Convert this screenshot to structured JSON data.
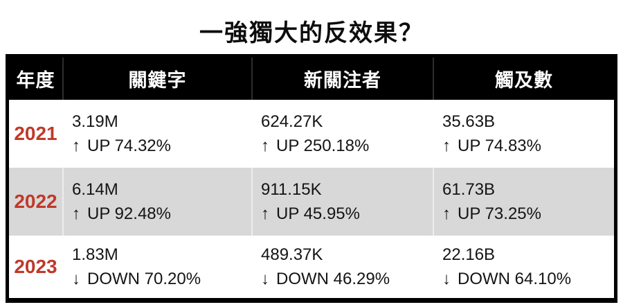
{
  "title": "一強獨大的反效果？",
  "colors": {
    "header_bg": "#000000",
    "header_text": "#ffffff",
    "year_accent": "#c0392b",
    "row_alt_bg": "#d8d8d8",
    "row_bg": "#ffffff",
    "text": "#141414",
    "border": "#000000"
  },
  "table": {
    "headers": [
      "年度",
      "關鍵字",
      "新關注者",
      "觸及數"
    ],
    "rows": [
      {
        "year": "2021",
        "cells": [
          {
            "value": "3.19M",
            "arrow": "↑",
            "change": "UP 74.32%",
            "direction": "up"
          },
          {
            "value": "624.27K",
            "arrow": "↑",
            "change": "UP 250.18%",
            "direction": "up"
          },
          {
            "value": "35.63B",
            "arrow": "↑",
            "change": "UP 74.83%",
            "direction": "up"
          }
        ]
      },
      {
        "year": "2022",
        "cells": [
          {
            "value": "6.14M",
            "arrow": "↑",
            "change": "UP 92.48%",
            "direction": "up"
          },
          {
            "value": "911.15K",
            "arrow": "↑",
            "change": "UP 45.95%",
            "direction": "up"
          },
          {
            "value": "61.73B",
            "arrow": "↑",
            "change": "UP 73.25%",
            "direction": "up"
          }
        ]
      },
      {
        "year": "2023",
        "cells": [
          {
            "value": "1.83M",
            "arrow": "↓",
            "change": "DOWN 70.20%",
            "direction": "down"
          },
          {
            "value": "489.37K",
            "arrow": "↓",
            "change": "DOWN 46.29%",
            "direction": "down"
          },
          {
            "value": "22.16B",
            "arrow": "↓",
            "change": "DOWN 64.10%",
            "direction": "down"
          }
        ]
      }
    ]
  },
  "chart_data": {
    "type": "table",
    "title": "一強獨大的反效果？",
    "columns": [
      "年度",
      "關鍵字",
      "新關注者",
      "觸及數"
    ],
    "rows": [
      [
        "2021",
        "3.19M ↑ UP 74.32%",
        "624.27K ↑ UP 250.18%",
        "35.63B ↑ UP 74.83%"
      ],
      [
        "2022",
        "6.14M ↑ UP 92.48%",
        "911.15K ↑ UP 45.95%",
        "61.73B ↑ UP 73.25%"
      ],
      [
        "2023",
        "1.83M ↓ DOWN 70.20%",
        "489.37K ↓ DOWN 46.29%",
        "22.16B ↓ DOWN 64.10%"
      ]
    ],
    "notes": {
      "keywords_M": [
        3.19,
        6.14,
        1.83
      ],
      "new_followers_K": [
        624.27,
        911.15,
        489.37
      ],
      "reach_B": [
        35.63,
        61.73,
        22.16
      ],
      "keywords_change_pct": [
        74.32,
        92.48,
        -70.2
      ],
      "new_followers_change_pct": [
        250.18,
        45.95,
        -46.29
      ],
      "reach_change_pct": [
        74.83,
        73.25,
        -64.1
      ]
    }
  }
}
